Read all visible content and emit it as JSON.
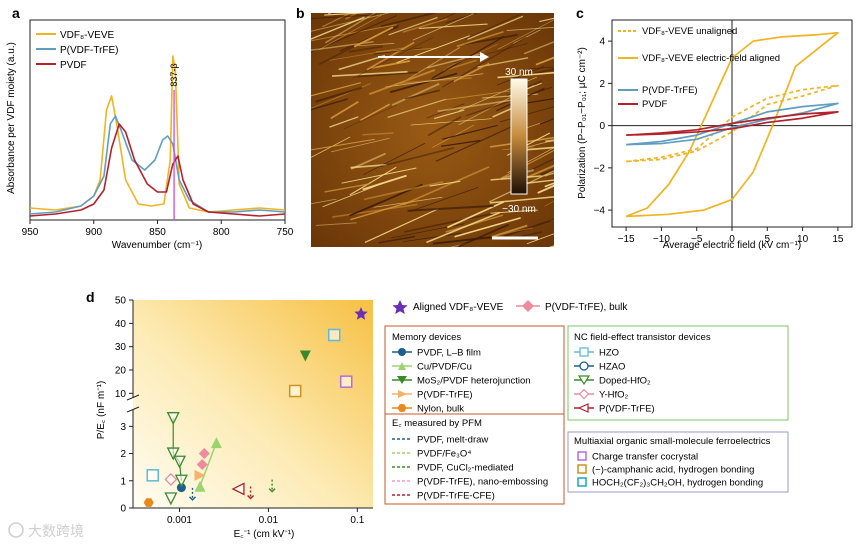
{
  "panel_labels": {
    "a": "a",
    "b": "b",
    "c": "c",
    "d": "d"
  },
  "colors": {
    "veve": "#f0b323",
    "trfe": "#5f9ec2",
    "pvdf": "#b3212a",
    "purple": "#6a2fb5",
    "pink": "#ec8c9d",
    "orange": "#e8891c",
    "teal": "#1a7f9a",
    "navy": "#1c5f8a",
    "green": "#3a8a2a",
    "lightgreen": "#9bd36e",
    "magenta": "#d24bd2"
  },
  "watermark": "大数跨境",
  "chart_data": [
    {
      "panel": "a",
      "type": "line",
      "ylabel": "Absorbance per VDF moiety (a.u.)",
      "xlabel": "Wavenumber (cm⁻¹)",
      "xlim": [
        950,
        750
      ],
      "ylim": [
        0,
        1
      ],
      "xticks": [
        "950",
        "900",
        "850",
        "800",
        "750"
      ],
      "annotation": "837-β",
      "annotation_x": 837,
      "legend": [
        "VDF₈-VEVE",
        "P(VDF-TrFE)",
        "PVDF"
      ],
      "series": [
        {
          "name": "VDF₈-VEVE",
          "color": "#f0b323",
          "points": [
            [
              950,
              0.06
            ],
            [
              930,
              0.05
            ],
            [
              910,
              0.07
            ],
            [
              900,
              0.12
            ],
            [
              895,
              0.2
            ],
            [
              890,
              0.55
            ],
            [
              886,
              0.62
            ],
            [
              882,
              0.48
            ],
            [
              875,
              0.2
            ],
            [
              865,
              0.08
            ],
            [
              855,
              0.07
            ],
            [
              845,
              0.08
            ],
            [
              840,
              0.3
            ],
            [
              838,
              0.82
            ],
            [
              836,
              0.75
            ],
            [
              833,
              0.18
            ],
            [
              825,
              0.06
            ],
            [
              810,
              0.04
            ],
            [
              790,
              0.05
            ],
            [
              770,
              0.06
            ],
            [
              750,
              0.05
            ]
          ]
        },
        {
          "name": "P(VDF-TrFE)",
          "color": "#5f9ec2",
          "points": [
            [
              950,
              0.03
            ],
            [
              930,
              0.04
            ],
            [
              910,
              0.07
            ],
            [
              900,
              0.12
            ],
            [
              892,
              0.22
            ],
            [
              887,
              0.48
            ],
            [
              883,
              0.52
            ],
            [
              878,
              0.44
            ],
            [
              870,
              0.3
            ],
            [
              860,
              0.25
            ],
            [
              852,
              0.3
            ],
            [
              846,
              0.4
            ],
            [
              842,
              0.42
            ],
            [
              838,
              0.38
            ],
            [
              833,
              0.2
            ],
            [
              825,
              0.1
            ],
            [
              810,
              0.04
            ],
            [
              790,
              0.04
            ],
            [
              770,
              0.05
            ],
            [
              750,
              0.04
            ]
          ]
        },
        {
          "name": "PVDF",
          "color": "#b3212a",
          "points": [
            [
              950,
              0.02
            ],
            [
              930,
              0.03
            ],
            [
              910,
              0.05
            ],
            [
              900,
              0.08
            ],
            [
              892,
              0.15
            ],
            [
              886,
              0.36
            ],
            [
              880,
              0.48
            ],
            [
              875,
              0.44
            ],
            [
              868,
              0.3
            ],
            [
              858,
              0.18
            ],
            [
              850,
              0.14
            ],
            [
              843,
              0.14
            ],
            [
              838,
              0.28
            ],
            [
              834,
              0.32
            ],
            [
              830,
              0.2
            ],
            [
              822,
              0.08
            ],
            [
              810,
              0.04
            ],
            [
              790,
              0.03
            ],
            [
              770,
              0.02
            ],
            [
              750,
              0.03
            ]
          ]
        }
      ]
    },
    {
      "panel": "c",
      "type": "line",
      "ylabel": "Polarization (P−P₀₁−P₀₁; μC cm⁻²)",
      "xlabel": "Average electric field (kV cm⁻¹)",
      "xlim": [
        -17,
        17
      ],
      "ylim": [
        -4.8,
        5
      ],
      "xticks": [
        "−15",
        "−10",
        "−5",
        "0",
        "5",
        "10",
        "15"
      ],
      "yticks": [
        "4",
        "2",
        "0",
        "−2",
        "−4"
      ],
      "legend": [
        "VDF₈-VEVE unaligned",
        "VDF₈-VEVE electric-field aligned",
        "P(VDF-TrFE)",
        "PVDF"
      ],
      "series": [
        {
          "name": "VDF₈-VEVE unaligned",
          "color": "#f0b323",
          "dashed": true,
          "points": [
            [
              -15,
              -1.7
            ],
            [
              -10,
              -1.5
            ],
            [
              -5,
              -1.1
            ],
            [
              0,
              0.4
            ],
            [
              5,
              1.3
            ],
            [
              10,
              1.7
            ],
            [
              15,
              1.9
            ],
            [
              10,
              1.4
            ],
            [
              5,
              1.0
            ],
            [
              0,
              -0.3
            ],
            [
              -5,
              -1.2
            ],
            [
              -10,
              -1.6
            ],
            [
              -15,
              -1.7
            ]
          ]
        },
        {
          "name": "VDF₈-VEVE electric-field aligned",
          "color": "#f0b323",
          "dashed": false,
          "points": [
            [
              -15,
              -4.3
            ],
            [
              -12,
              -3.9
            ],
            [
              -9,
              -2.8
            ],
            [
              -6,
              -1.2
            ],
            [
              -3,
              1.0
            ],
            [
              0,
              3.2
            ],
            [
              3,
              4.0
            ],
            [
              7,
              4.2
            ],
            [
              12,
              4.3
            ],
            [
              15,
              4.4
            ],
            [
              12,
              3.6
            ],
            [
              9,
              2.8
            ],
            [
              6,
              0.2
            ],
            [
              3,
              -2.2
            ],
            [
              0,
              -3.5
            ],
            [
              -4,
              -4.0
            ],
            [
              -9,
              -4.2
            ],
            [
              -15,
              -4.3
            ]
          ]
        },
        {
          "name": "P(VDF-TrFE)",
          "color": "#5f9ec2",
          "dashed": false,
          "points": [
            [
              -15,
              -0.9
            ],
            [
              -10,
              -0.75
            ],
            [
              -5,
              -0.45
            ],
            [
              0,
              0.1
            ],
            [
              5,
              0.65
            ],
            [
              10,
              0.9
            ],
            [
              15,
              1.05
            ],
            [
              10,
              0.6
            ],
            [
              5,
              0.3
            ],
            [
              0,
              -0.1
            ],
            [
              -5,
              -0.65
            ],
            [
              -10,
              -0.85
            ],
            [
              -15,
              -0.9
            ]
          ]
        },
        {
          "name": "PVDF",
          "color": "#b3212a",
          "dashed": false,
          "points": [
            [
              -15,
              -0.45
            ],
            [
              -10,
              -0.35
            ],
            [
              -5,
              -0.2
            ],
            [
              0,
              0.1
            ],
            [
              5,
              0.35
            ],
            [
              10,
              0.55
            ],
            [
              15,
              0.65
            ],
            [
              10,
              0.35
            ],
            [
              5,
              0.15
            ],
            [
              0,
              -0.15
            ],
            [
              -5,
              -0.3
            ],
            [
              -10,
              -0.4
            ],
            [
              -15,
              -0.45
            ]
          ]
        }
      ]
    },
    {
      "panel": "d",
      "type": "scatter",
      "xlabel": "E꜀⁻¹ (cm kV⁻¹)",
      "ylabel": "P/E꜀ (nF m⁻¹)",
      "xscale": "log",
      "xlim": [
        0.0003,
        0.15
      ],
      "xticks": [
        0.001,
        0.01,
        0.1
      ],
      "xticklabels": [
        "0.001",
        "0.01",
        "0.1"
      ],
      "upper_yticks": [
        10,
        20,
        30,
        40,
        50
      ],
      "lower_yticks": [
        0,
        1,
        2,
        3
      ],
      "upper_range": [
        8,
        50
      ],
      "lower_range": [
        0,
        3.6
      ],
      "points": [
        {
          "name": "Aligned VDF₈-VEVE",
          "marker": "star",
          "color": "#6a2fb5",
          "x": 0.11,
          "y": 44
        },
        {
          "name": "HZO",
          "marker": "square-open",
          "color": "#62b8d6",
          "x": 0.055,
          "y": 35
        },
        {
          "name": "Charge transfer cocrystal",
          "marker": "square-open",
          "color": "#b86fd3",
          "x": 0.075,
          "y": 15
        },
        {
          "name": "(−)-camphanic acid",
          "marker": "square-open",
          "color": "#c9941e",
          "x": 0.02,
          "y": 11
        },
        {
          "name": "MoS₂/PVDF",
          "marker": "tri-down",
          "color": "#3a8a2a",
          "x": 0.026,
          "y": 26
        },
        {
          "name": "Cu/PVDF/Cu",
          "marker": "tri-up",
          "color": "#9bd36e",
          "x": 0.0026,
          "y": 2.4
        },
        {
          "name": "Cu/PVDF/Cu",
          "marker": "tri-up",
          "color": "#9bd36e",
          "x": 0.0017,
          "y": 0.8
        },
        {
          "name": "PVDF, L–B film",
          "marker": "circle",
          "color": "#1c5f8a",
          "x": 0.00105,
          "y": 0.75
        },
        {
          "name": "Nylon, bulk",
          "marker": "hexagon",
          "color": "#e8891c",
          "x": 0.00045,
          "y": 0.2
        },
        {
          "name": "HOCH₂(CF₂)₃CH₂OH",
          "marker": "square-open",
          "color": "#62b8d6",
          "x": 0.0005,
          "y": 1.2
        },
        {
          "name": "P(VDF-TrFE), bulk",
          "marker": "diamond",
          "color": "#ec8c9d",
          "x": 0.0019,
          "y": 2.0
        },
        {
          "name": "P(VDF-TrFE), bulk",
          "marker": "diamond",
          "color": "#ec8c9d",
          "x": 0.0018,
          "y": 1.6
        },
        {
          "name": "P(VDF-TrFE)",
          "marker": "tri-right",
          "color": "#f5b26b",
          "x": 0.0017,
          "y": 1.2
        },
        {
          "name": "Y-HfO₂",
          "marker": "diamond-open",
          "color": "#ec8c9d",
          "x": 0.0008,
          "y": 1.05
        },
        {
          "name": "Doped-HfO₂",
          "marker": "tri-down-open",
          "color": "#3a8a2a",
          "x": 0.00085,
          "y": 3.3
        },
        {
          "name": "Doped-HfO₂",
          "marker": "tri-down-open",
          "color": "#3a8a2a",
          "x": 0.00085,
          "y": 2.0
        },
        {
          "name": "Doped-HfO₂",
          "marker": "tri-down-open",
          "color": "#3a8a2a",
          "x": 0.001,
          "y": 1.7
        },
        {
          "name": "Doped-HfO₂",
          "marker": "tri-down-open",
          "color": "#3a8a2a",
          "x": 0.00105,
          "y": 1.0
        },
        {
          "name": "Doped-HfO₂",
          "marker": "tri-down-open",
          "color": "#3a8a2a",
          "x": 0.0008,
          "y": 0.35
        },
        {
          "name": "P(VDF-TrFE) NC",
          "marker": "tri-left-open",
          "color": "#b3212a",
          "x": 0.0046,
          "y": 0.7
        },
        {
          "name": "PFM",
          "marker": "arrow",
          "color": "#3a8a2a",
          "x": 0.011,
          "y": 0.6
        },
        {
          "name": "PFM",
          "marker": "arrow",
          "color": "#b3212a",
          "x": 0.0063,
          "y": 0.35
        },
        {
          "name": "PFM",
          "marker": "arrow",
          "color": "#1c5f8a",
          "x": 0.0014,
          "y": 0.3
        }
      ]
    }
  ],
  "panel_b": {
    "scale_top": "30 nm",
    "scale_bottom": "−30 nm"
  },
  "legend_d": {
    "top": [
      "Aligned VDF₈-VEVE",
      "P(VDF-TrFE), bulk"
    ],
    "memory_title": "Memory devices",
    "memory_items": [
      "PVDF, L–B film",
      "Cu/PVDF/Cu",
      "MoS₂/PVDF heterojunction",
      "P(VDF-TrFE)",
      "Nylon, bulk"
    ],
    "pfm_title": "E꜀ measured by PFM",
    "pfm_items": [
      "PVDF, melt-draw",
      "PVDF/Fe₃O⁴",
      "PVDF, CuCl₂-mediated",
      "P(VDF-TrFE), nano-embossing",
      "P(VDF-TrFE-CFE)"
    ],
    "nc_title": "NC field-effect transistor devices",
    "nc_items": [
      "HZO",
      "HZAO",
      "Doped-HfO₂",
      "Y-HfO₂",
      "P(VDF-TrFE)"
    ],
    "multi_title": "Multiaxial organic small-molecule ferroelectrics",
    "multi_items": [
      "Charge transfer cocrystal",
      "(−)-camphanic acid, hydrogen bonding",
      "HOCH₂(CF₂)₃CH₂OH, hydrogen bonding"
    ]
  }
}
